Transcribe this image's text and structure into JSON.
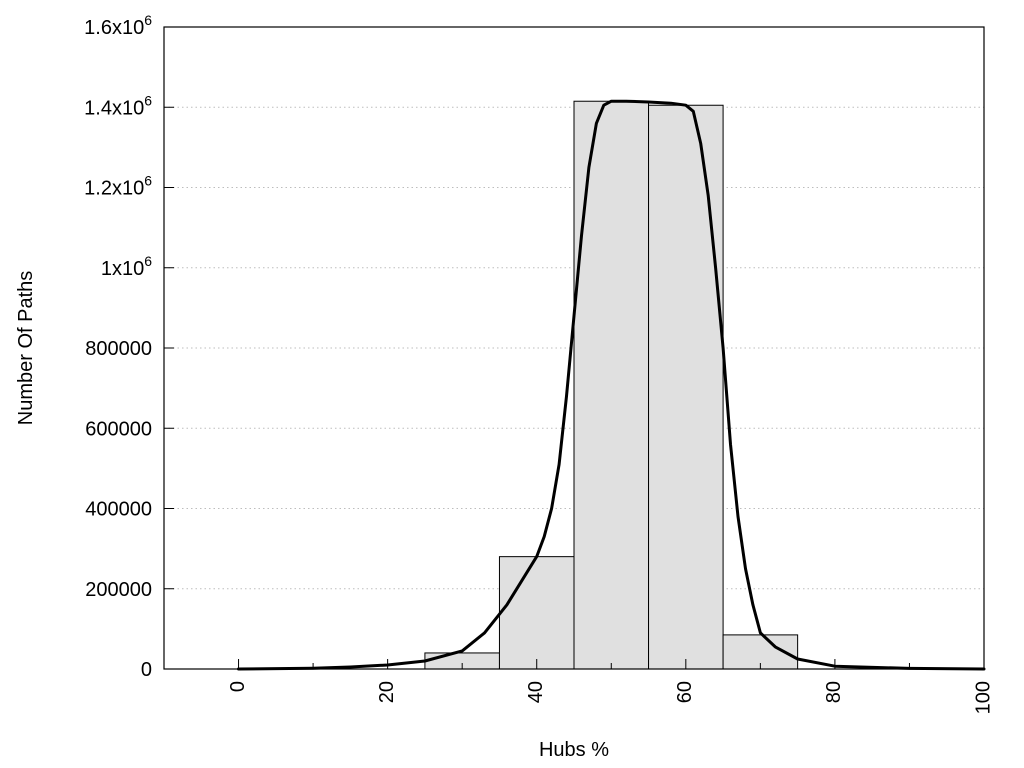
{
  "chart_data": {
    "type": "bar",
    "xlabel": "Hubs %",
    "ylabel": "Number Of Paths",
    "xlim": [
      -10,
      100
    ],
    "ylim": [
      0,
      1600000
    ],
    "grid": "horizontal-dotted",
    "x_ticks": [
      {
        "value": 0,
        "label": "0"
      },
      {
        "value": 20,
        "label": "20"
      },
      {
        "value": 40,
        "label": "40"
      },
      {
        "value": 60,
        "label": "60"
      },
      {
        "value": 80,
        "label": "80"
      },
      {
        "value": 100,
        "label": "100"
      }
    ],
    "x_minor_ticks": [
      10,
      30,
      50,
      70,
      90
    ],
    "y_ticks": [
      {
        "value": 0,
        "base": "0",
        "exp": ""
      },
      {
        "value": 200000,
        "base": "200000",
        "exp": ""
      },
      {
        "value": 400000,
        "base": "400000",
        "exp": ""
      },
      {
        "value": 600000,
        "base": "600000",
        "exp": ""
      },
      {
        "value": 800000,
        "base": "800000",
        "exp": ""
      },
      {
        "value": 1000000,
        "base": "1x10",
        "exp": "6"
      },
      {
        "value": 1200000,
        "base": "1.2x10",
        "exp": "6"
      },
      {
        "value": 1400000,
        "base": "1.4x10",
        "exp": "6"
      },
      {
        "value": 1600000,
        "base": "1.6x10",
        "exp": "6"
      }
    ],
    "bars": [
      {
        "x": 0,
        "value": 0
      },
      {
        "x": 10,
        "value": 0
      },
      {
        "x": 20,
        "value": 0
      },
      {
        "x": 30,
        "value": 40000
      },
      {
        "x": 40,
        "value": 280000
      },
      {
        "x": 50,
        "value": 1415000
      },
      {
        "x": 60,
        "value": 1405000
      },
      {
        "x": 70,
        "value": 85000
      },
      {
        "x": 80,
        "value": 0
      },
      {
        "x": 90,
        "value": 0
      }
    ],
    "bar_width": 10,
    "bar_fill": "#e0e0e0",
    "bar_stroke": "#000000",
    "curve": {
      "x": [
        0,
        10,
        15,
        20,
        25,
        30,
        33,
        36,
        38,
        40,
        41,
        42,
        43,
        44,
        45,
        46,
        47,
        48,
        49,
        50,
        52,
        55,
        58,
        60,
        61,
        62,
        63,
        64,
        65,
        66,
        67,
        68,
        69,
        70,
        72,
        75,
        80,
        90,
        100
      ],
      "y": [
        0,
        2000,
        5000,
        10000,
        20000,
        45000,
        90000,
        160000,
        220000,
        280000,
        330000,
        400000,
        510000,
        680000,
        880000,
        1080000,
        1250000,
        1360000,
        1405000,
        1415000,
        1415000,
        1413000,
        1410000,
        1405000,
        1390000,
        1310000,
        1180000,
        1000000,
        800000,
        560000,
        380000,
        250000,
        160000,
        90000,
        55000,
        25000,
        7000,
        1500,
        0
      ],
      "stroke": "#000000"
    }
  }
}
